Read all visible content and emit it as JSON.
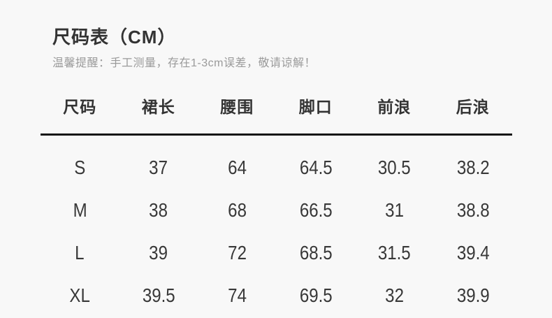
{
  "page": {
    "title": "尺码表（CM）",
    "note": "温馨提醒：手工测量，存在1-3cm误差，敬请谅解！"
  },
  "size_table": {
    "headers": [
      "尺码",
      "裙长",
      "腰围",
      "脚口",
      "前浪",
      "后浪"
    ],
    "rows": [
      [
        "S",
        "37",
        "64",
        "64.5",
        "30.5",
        "38.2"
      ],
      [
        "M",
        "38",
        "68",
        "66.5",
        "31",
        "38.8"
      ],
      [
        "L",
        "39",
        "72",
        "68.5",
        "31.5",
        "39.4"
      ],
      [
        "XL",
        "39.5",
        "74",
        "69.5",
        "32",
        "39.9"
      ]
    ]
  },
  "colors": {
    "background": "#f8f8f8",
    "title_text": "#333333",
    "note_text": "#9a9a9a",
    "table_text": "#383838",
    "header_divider": "#141414"
  }
}
